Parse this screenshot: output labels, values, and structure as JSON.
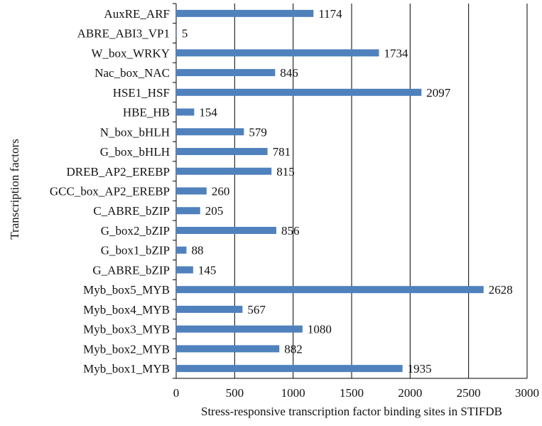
{
  "chart_data": {
    "type": "bar",
    "orientation": "horizontal",
    "title": "",
    "xlabel": "Stress-responsive transcription factor binding sites in STIFDB",
    "ylabel": "Transcription factors",
    "xlim": [
      0,
      3000
    ],
    "xticks": [
      "0",
      "500",
      "1000",
      "1500",
      "2000",
      "2500",
      "3000"
    ],
    "grid": "vertical",
    "bar_color": "#4f81bd",
    "categories": [
      "AuxRE_ARF",
      "ABRE_ABI3_VP1",
      "W_box_WRKY",
      "Nac_box_NAC",
      "HSE1_HSF",
      "HBE_HB",
      "N_box_bHLH",
      "G_box_bHLH",
      "DREB_AP2_EREBP",
      "GCC_box_AP2_EREBP",
      "C_ABRE_bZIP",
      "G_box2_bZIP",
      "G_box1_bZIP",
      "G_ABRE_bZIP",
      "Myb_box5_MYB",
      "Myb_box4_MYB",
      "Myb_box3_MYB",
      "Myb_box2_MYB",
      "Myb_box1_MYB"
    ],
    "values": [
      1174,
      5,
      1734,
      846,
      2097,
      154,
      579,
      781,
      815,
      260,
      205,
      856,
      88,
      145,
      2628,
      567,
      1080,
      882,
      1935
    ]
  }
}
